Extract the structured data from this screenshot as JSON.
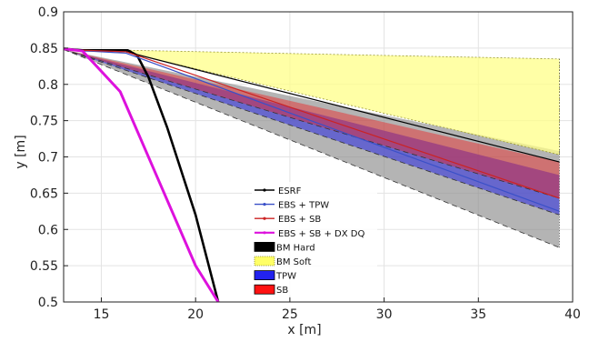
{
  "chart_data": {
    "type": "line",
    "title": "",
    "xlabel": "x [m]",
    "ylabel": "y [m]",
    "xlim": [
      13,
      40
    ],
    "ylim": [
      0.5,
      0.9
    ],
    "xticks": [
      15,
      20,
      25,
      30,
      35,
      40
    ],
    "yticks": [
      0.5,
      0.55,
      0.6,
      0.65,
      0.7,
      0.75,
      0.8,
      0.85,
      0.9
    ],
    "xtick_labels": [
      "15",
      "20",
      "25",
      "30",
      "35",
      "40"
    ],
    "ytick_labels": [
      "0.5",
      "0.55",
      "0.6",
      "0.65",
      "0.7",
      "0.75",
      "0.8",
      "0.85",
      "0.9"
    ],
    "grid": true,
    "legend_position": "bottom-center",
    "series": [
      {
        "name": "ESRF",
        "color": "#000000",
        "x": [
          13,
          16.3,
          39.3
        ],
        "y": [
          0.848,
          0.845,
          0.693
        ]
      },
      {
        "name": "EBS + TPW",
        "color": "#3a50c8",
        "x": [
          13,
          16.3,
          39.3
        ],
        "y": [
          0.848,
          0.843,
          0.625
        ]
      },
      {
        "name": "EBS + SB",
        "color": "#cc2222",
        "x": [
          13,
          16.3,
          39.3
        ],
        "y": [
          0.848,
          0.845,
          0.643
        ]
      },
      {
        "name": "EBS + SB + DX DQ",
        "color": "#dd11dd",
        "x": [
          13,
          14,
          16,
          18,
          20,
          21.2
        ],
        "y": [
          0.849,
          0.846,
          0.79,
          0.67,
          0.55,
          0.5
        ]
      }
    ],
    "band_series": [
      {
        "name": "BM Hard",
        "color": "#000000",
        "x": [
          13,
          14,
          16.4,
          16.9,
          17.5,
          18.5,
          20,
          21.2
        ],
        "y": [
          0.849,
          0.847,
          0.847,
          0.84,
          0.81,
          0.74,
          0.62,
          0.5
        ]
      },
      {
        "name": "BM Soft",
        "color": "#ffff88",
        "x_range": [
          16.5,
          39.3
        ],
        "y_upper": [
          0.847,
          0.835
        ],
        "y_lower": [
          0.843,
          0.703
        ]
      },
      {
        "name": "TPW",
        "color": "#3333dd",
        "x_range": [
          13,
          39.3
        ],
        "y_upper": [
          0.848,
          0.675
        ],
        "y_lower": [
          0.848,
          0.62
        ]
      },
      {
        "name": "SB",
        "color": "#ee2222",
        "x_range": [
          13,
          39.3
        ],
        "y_upper": [
          0.848,
          0.693
        ],
        "y_lower": [
          0.848,
          0.643
        ]
      }
    ],
    "grey_envelope": {
      "x_range": [
        13,
        39.3
      ],
      "y_upper": [
        0.848,
        0.708
      ],
      "y_lower": [
        0.848,
        0.575
      ]
    },
    "legend": [
      "ESRF",
      "EBS + TPW",
      "EBS + SB",
      "EBS + SB + DX DQ",
      "BM Hard",
      "BM Soft",
      "TPW",
      "SB"
    ]
  }
}
